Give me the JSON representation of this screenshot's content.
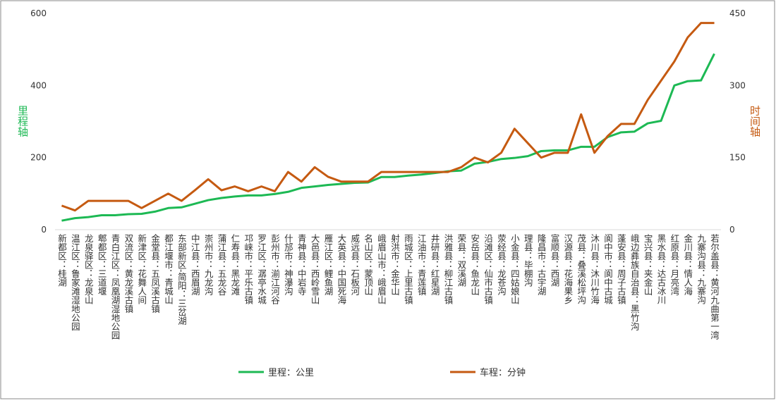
{
  "chart_data": {
    "type": "line",
    "y_label": "里程轴",
    "y2_label": "时间轴",
    "categories": [
      "新都区：桂湖",
      "温江区：鲁家滩湿地公园",
      "龙泉驿区：龙泉山",
      "郫都区：三道堰",
      "青白江区：凤凰湖湿地公园",
      "双流区：黄龙溪古镇",
      "新津区：花舞人间",
      "金堂县：五凤溪古镇",
      "都江堰市：青城山",
      "东部新区-简阳：三岔湖",
      "中江县：西眉湖",
      "崇州市：九龙沟",
      "蒲江县：五龙谷",
      "仁寿县：黑龙滩",
      "邛崃市：平乐古镇",
      "罗江区：潺亭水城",
      "彭州市：湔江河谷",
      "什邡市：神瀑沟",
      "青神县：中岩寺",
      "大邑县：西岭雪山",
      "雁江区：鲤鱼湖",
      "大英县：中国死海",
      "威远县：石板河",
      "名山区：蒙顶山",
      "峨眉山市：峨眉山",
      "射洪市：金华山",
      "雨城区：上里古镇",
      "江油市：青莲镇",
      "井研县：红星湖",
      "洪雅县：柳江古镇",
      "荣县：双溪湖",
      "安岳县：鱼龙山",
      "沿滩区：仙市古镇",
      "荥经县：龙苍沟",
      "小金县：四姑娘山",
      "理县：毕棚沟",
      "隆昌市：古宇湖",
      "富顺县：西湖",
      "汉源县：花海果乡",
      "茂县：叠溪松坪沟",
      "沐川县：沐川竹海",
      "阆中市：阆中古城",
      "蓬安县：周子古镇",
      "峨边彝族自治县：黑竹沟",
      "宝兴县：夹金山",
      "黑水县：达古冰川",
      "红原县：月亮湾",
      "金川县：情人海",
      "九寨沟县：九寨沟",
      "若尔盖县：黄河九曲第一湾"
    ],
    "series": [
      {
        "name": "里程：公里",
        "color": "#1db954",
        "values": [
          25,
          32,
          35,
          40,
          40,
          43,
          44,
          50,
          60,
          62,
          72,
          82,
          88,
          92,
          95,
          95,
          99,
          105,
          116,
          120,
          124,
          127,
          130,
          131,
          146,
          146,
          150,
          153,
          157,
          162,
          164,
          183,
          188,
          196,
          199,
          204,
          218,
          220,
          220,
          230,
          230,
          257,
          270,
          272,
          295,
          302,
          400,
          412,
          414,
          488
        ]
      },
      {
        "name": "车程：分钟",
        "color": "#c55a11",
        "axis": "y2",
        "values": [
          50,
          40,
          60,
          60,
          60,
          60,
          45,
          60,
          75,
          60,
          82,
          105,
          82,
          90,
          80,
          90,
          80,
          120,
          100,
          130,
          110,
          100,
          100,
          100,
          120,
          120,
          120,
          120,
          120,
          120,
          130,
          150,
          140,
          160,
          210,
          180,
          150,
          160,
          160,
          240,
          160,
          195,
          220,
          220,
          270,
          310,
          350,
          400,
          430,
          430
        ]
      }
    ],
    "ylim": [
      0,
      600
    ],
    "yticks": [
      0,
      200,
      400,
      600
    ],
    "y2lim": [
      0,
      450
    ],
    "y2ticks": [
      0,
      150,
      300,
      450
    ],
    "legend": "bottom"
  }
}
